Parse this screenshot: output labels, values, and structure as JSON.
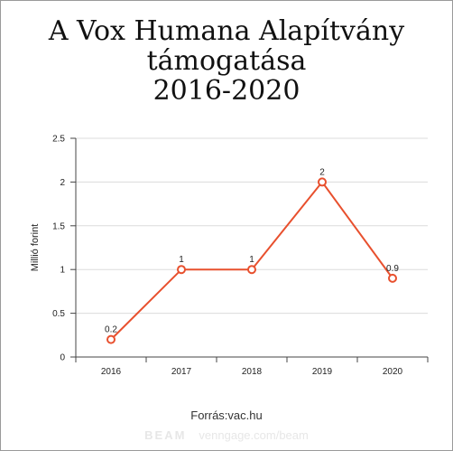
{
  "chart_data": {
    "type": "line",
    "title": [
      "A Vox Humana Alapítvány",
      "támogatása",
      "2016-2020"
    ],
    "ylabel": "Millió forint",
    "categories": [
      "2016",
      "2017",
      "2018",
      "2019",
      "2020"
    ],
    "values": [
      0.2,
      1,
      1,
      2,
      0.9
    ],
    "data_labels": [
      "0.2",
      "1",
      "1",
      "2",
      "0.9"
    ],
    "ylim": [
      0,
      2.5
    ],
    "yticks": [
      0,
      0.5,
      1,
      1.5,
      2,
      2.5
    ],
    "ytick_labels": [
      "0",
      "0.5",
      "1",
      "1.5",
      "2",
      "2.5"
    ],
    "grid": true,
    "line_color": "#e8502e"
  },
  "source": "Forrás:vac.hu",
  "watermark": {
    "brand": "BEAM",
    "url": "venngage.com/beam"
  }
}
